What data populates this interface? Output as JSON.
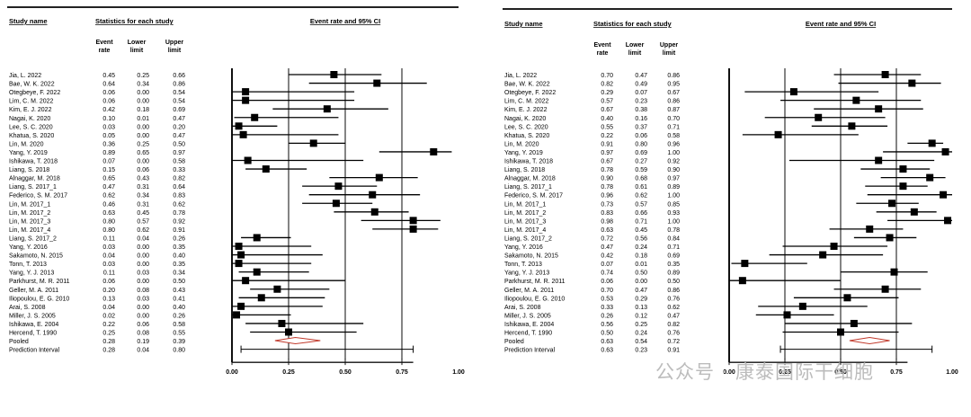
{
  "watermark": "公众号 · 康泰国际干细胞",
  "panels": [
    {
      "headers": {
        "study_name": "Study name",
        "stats_group": "Statistics for each study",
        "col_event_rate": [
          "Event",
          "rate"
        ],
        "col_lower": [
          "Lower",
          "limit"
        ],
        "col_upper": [
          "Upper",
          "limit"
        ],
        "plot_title": "Event rate and 95% CI"
      },
      "axis": {
        "ticks": [
          "0.00",
          "0.25",
          "0.50",
          "0.75",
          "1.00"
        ],
        "range": [
          0,
          1
        ]
      }
    },
    {
      "headers": {
        "study_name": "Study name",
        "stats_group": "Statistics for each study",
        "col_event_rate": [
          "Event",
          "rate"
        ],
        "col_lower": [
          "Lower",
          "limit"
        ],
        "col_upper": [
          "Upper",
          "limit"
        ],
        "plot_title": "Event rate and 95% CI"
      },
      "axis": {
        "ticks": [
          "0.00",
          "0.25",
          "0.50",
          "0.75",
          "1.00"
        ],
        "range": [
          0,
          1
        ]
      }
    }
  ],
  "chart_data": [
    {
      "type": "forest",
      "title": "Event rate and 95% CI",
      "xlim": [
        0,
        1
      ],
      "x_ticks": [
        0,
        0.25,
        0.5,
        0.75,
        1.0
      ],
      "studies": [
        {
          "name": "Jia, L. 2022",
          "rate": "0.45",
          "lower": "0.25",
          "upper": "0.66"
        },
        {
          "name": "Bae, W. K. 2022",
          "rate": "0.64",
          "lower": "0.34",
          "upper": "0.86"
        },
        {
          "name": "Otegbeye, F. 2022",
          "rate": "0.06",
          "lower": "0.00",
          "upper": "0.54"
        },
        {
          "name": "Lim, C. M. 2022",
          "rate": "0.06",
          "lower": "0.00",
          "upper": "0.54"
        },
        {
          "name": "Kim, E. J. 2022",
          "rate": "0.42",
          "lower": "0.18",
          "upper": "0.69"
        },
        {
          "name": "Nagai, K. 2020",
          "rate": "0.10",
          "lower": "0.01",
          "upper": "0.47"
        },
        {
          "name": "Lee, S. C. 2020",
          "rate": "0.03",
          "lower": "0.00",
          "upper": "0.20"
        },
        {
          "name": "Khatua, S. 2020",
          "rate": "0.05",
          "lower": "0.00",
          "upper": "0.47"
        },
        {
          "name": "Lin, M. 2020",
          "rate": "0.36",
          "lower": "0.25",
          "upper": "0.50"
        },
        {
          "name": "Yang, Y. 2019",
          "rate": "0.89",
          "lower": "0.65",
          "upper": "0.97"
        },
        {
          "name": "Ishikawa, T. 2018",
          "rate": "0.07",
          "lower": "0.00",
          "upper": "0.58"
        },
        {
          "name": "Liang, S. 2018",
          "rate": "0.15",
          "lower": "0.06",
          "upper": "0.33"
        },
        {
          "name": "Alnaggar, M. 2018",
          "rate": "0.65",
          "lower": "0.43",
          "upper": "0.82"
        },
        {
          "name": "Liang, S. 2017_1",
          "rate": "0.47",
          "lower": "0.31",
          "upper": "0.64"
        },
        {
          "name": "Federico, S. M. 2017",
          "rate": "0.62",
          "lower": "0.34",
          "upper": "0.83"
        },
        {
          "name": "Lin, M. 2017_1",
          "rate": "0.46",
          "lower": "0.31",
          "upper": "0.62"
        },
        {
          "name": "Lin, M. 2017_2",
          "rate": "0.63",
          "lower": "0.45",
          "upper": "0.78"
        },
        {
          "name": "Lin, M. 2017_3",
          "rate": "0.80",
          "lower": "0.57",
          "upper": "0.92"
        },
        {
          "name": "Lin, M. 2017_4",
          "rate": "0.80",
          "lower": "0.62",
          "upper": "0.91"
        },
        {
          "name": "Liang, S. 2017_2",
          "rate": "0.11",
          "lower": "0.04",
          "upper": "0.26"
        },
        {
          "name": "Yang, Y. 2016",
          "rate": "0.03",
          "lower": "0.00",
          "upper": "0.35"
        },
        {
          "name": "Sakamoto, N. 2015",
          "rate": "0.04",
          "lower": "0.00",
          "upper": "0.40"
        },
        {
          "name": "Tonn, T. 2013",
          "rate": "0.03",
          "lower": "0.00",
          "upper": "0.35"
        },
        {
          "name": "Yang, Y. J. 2013",
          "rate": "0.11",
          "lower": "0.03",
          "upper": "0.34"
        },
        {
          "name": "Parkhurst, M. R. 2011",
          "rate": "0.06",
          "lower": "0.00",
          "upper": "0.50"
        },
        {
          "name": "Geller, M. A. 2011",
          "rate": "0.20",
          "lower": "0.08",
          "upper": "0.43"
        },
        {
          "name": "Iliopoulou, E. G. 2010",
          "rate": "0.13",
          "lower": "0.03",
          "upper": "0.41"
        },
        {
          "name": "Arai, S. 2008",
          "rate": "0.04",
          "lower": "0.00",
          "upper": "0.40"
        },
        {
          "name": "Miller, J. S. 2005",
          "rate": "0.02",
          "lower": "0.00",
          "upper": "0.26"
        },
        {
          "name": "Ishikawa, E. 2004",
          "rate": "0.22",
          "lower": "0.06",
          "upper": "0.58"
        },
        {
          "name": "Hercend, T. 1990",
          "rate": "0.25",
          "lower": "0.08",
          "upper": "0.55"
        }
      ],
      "pooled": {
        "name": "Pooled",
        "rate": "0.28",
        "lower": "0.19",
        "upper": "0.39"
      },
      "prediction": {
        "name": "Prediction Interval",
        "rate": "0.28",
        "lower": "0.04",
        "upper": "0.80"
      }
    },
    {
      "type": "forest",
      "title": "Event rate and 95% CI",
      "xlim": [
        0,
        1
      ],
      "x_ticks": [
        0,
        0.25,
        0.5,
        0.75,
        1.0
      ],
      "studies": [
        {
          "name": "Jia, L. 2022",
          "rate": "0.70",
          "lower": "0.47",
          "upper": "0.86"
        },
        {
          "name": "Bae, W. K. 2022",
          "rate": "0.82",
          "lower": "0.49",
          "upper": "0.95"
        },
        {
          "name": "Otegbeye, F. 2022",
          "rate": "0.29",
          "lower": "0.07",
          "upper": "0.67"
        },
        {
          "name": "Lim, C. M. 2022",
          "rate": "0.57",
          "lower": "0.23",
          "upper": "0.86"
        },
        {
          "name": "Kim, E. J. 2022",
          "rate": "0.67",
          "lower": "0.38",
          "upper": "0.87"
        },
        {
          "name": "Nagai, K. 2020",
          "rate": "0.40",
          "lower": "0.16",
          "upper": "0.70"
        },
        {
          "name": "Lee, S. C. 2020",
          "rate": "0.55",
          "lower": "0.37",
          "upper": "0.71"
        },
        {
          "name": "Khatua, S. 2020",
          "rate": "0.22",
          "lower": "0.06",
          "upper": "0.58"
        },
        {
          "name": "Lin, M. 2020",
          "rate": "0.91",
          "lower": "0.80",
          "upper": "0.96"
        },
        {
          "name": "Yang, Y. 2019",
          "rate": "0.97",
          "lower": "0.69",
          "upper": "1.00"
        },
        {
          "name": "Ishikawa, T. 2018",
          "rate": "0.67",
          "lower": "0.27",
          "upper": "0.92"
        },
        {
          "name": "Liang, S. 2018",
          "rate": "0.78",
          "lower": "0.59",
          "upper": "0.90"
        },
        {
          "name": "Alnaggar, M. 2018",
          "rate": "0.90",
          "lower": "0.68",
          "upper": "0.97"
        },
        {
          "name": "Liang, S. 2017_1",
          "rate": "0.78",
          "lower": "0.61",
          "upper": "0.89"
        },
        {
          "name": "Federico, S. M. 2017",
          "rate": "0.96",
          "lower": "0.62",
          "upper": "1.00"
        },
        {
          "name": "Lin, M. 2017_1",
          "rate": "0.73",
          "lower": "0.57",
          "upper": "0.85"
        },
        {
          "name": "Lin, M. 2017_2",
          "rate": "0.83",
          "lower": "0.66",
          "upper": "0.93"
        },
        {
          "name": "Lin, M. 2017_3",
          "rate": "0.98",
          "lower": "0.71",
          "upper": "1.00"
        },
        {
          "name": "Lin, M. 2017_4",
          "rate": "0.63",
          "lower": "0.45",
          "upper": "0.78"
        },
        {
          "name": "Liang, S. 2017_2",
          "rate": "0.72",
          "lower": "0.56",
          "upper": "0.84"
        },
        {
          "name": "Yang, Y. 2016",
          "rate": "0.47",
          "lower": "0.24",
          "upper": "0.71"
        },
        {
          "name": "Sakamoto, N. 2015",
          "rate": "0.42",
          "lower": "0.18",
          "upper": "0.69"
        },
        {
          "name": "Tonn, T. 2013",
          "rate": "0.07",
          "lower": "0.01",
          "upper": "0.35"
        },
        {
          "name": "Yang, Y. J. 2013",
          "rate": "0.74",
          "lower": "0.50",
          "upper": "0.89"
        },
        {
          "name": "Parkhurst, M. R. 2011",
          "rate": "0.06",
          "lower": "0.00",
          "upper": "0.50"
        },
        {
          "name": "Geller, M. A. 2011",
          "rate": "0.70",
          "lower": "0.47",
          "upper": "0.86"
        },
        {
          "name": "Iliopoulou, E. G. 2010",
          "rate": "0.53",
          "lower": "0.29",
          "upper": "0.76"
        },
        {
          "name": "Arai, S. 2008",
          "rate": "0.33",
          "lower": "0.13",
          "upper": "0.62"
        },
        {
          "name": "Miller, J. S. 2005",
          "rate": "0.26",
          "lower": "0.12",
          "upper": "0.47"
        },
        {
          "name": "Ishikawa, E. 2004",
          "rate": "0.56",
          "lower": "0.25",
          "upper": "0.82"
        },
        {
          "name": "Hercend, T. 1990",
          "rate": "0.50",
          "lower": "0.24",
          "upper": "0.76"
        }
      ],
      "pooled": {
        "name": "Pooled",
        "rate": "0.63",
        "lower": "0.54",
        "upper": "0.72"
      },
      "prediction": {
        "name": "Prediction Interval",
        "rate": "0.63",
        "lower": "0.23",
        "upper": "0.91"
      }
    }
  ]
}
